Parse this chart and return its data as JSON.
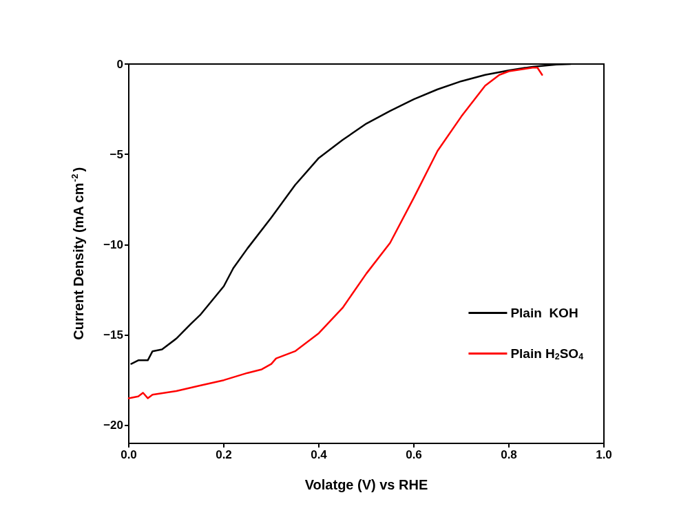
{
  "chart_data": {
    "type": "line",
    "xlabel": "Volatge (V) vs RHE",
    "ylabel": "Current Density (mA cm$^{-2}$)",
    "xlim": [
      0,
      1
    ],
    "xticks": [
      {
        "value": 0,
        "label": "0.0"
      },
      {
        "value": 0.2,
        "label": "0.2"
      },
      {
        "value": 0.4,
        "label": "0.4"
      },
      {
        "value": 0.6,
        "label": "0.6"
      },
      {
        "value": 0.8,
        "label": "0.8"
      },
      {
        "value": 1,
        "label": "1.0"
      }
    ],
    "ylim": [
      -21,
      0
    ],
    "yticks": [
      {
        "value": -20,
        "label": "−20"
      },
      {
        "value": -15,
        "label": "−15"
      },
      {
        "value": -10,
        "label": "−10"
      },
      {
        "value": -5,
        "label": "−5"
      },
      0
    ],
    "grid": false,
    "legend": "right",
    "marker": "none",
    "line_style": "solid",
    "series": [
      {
        "name": "Plain  KOH",
        "color": "#000000",
        "x": [
          0.005,
          0.02,
          0.04,
          0.05,
          0.07,
          0.1,
          0.13,
          0.15,
          0.2,
          0.22,
          0.25,
          0.3,
          0.35,
          0.4,
          0.45,
          0.5,
          0.55,
          0.6,
          0.65,
          0.7,
          0.75,
          0.8,
          0.85,
          0.9,
          0.93
        ],
        "values": [
          -16.6,
          -16.4,
          -16.4,
          -15.9,
          -15.8,
          -15.2,
          -14.4,
          -13.9,
          -12.3,
          -11.3,
          -10.2,
          -8.5,
          -6.7,
          -5.2,
          -4.2,
          -3.3,
          -2.6,
          -1.95,
          -1.4,
          -0.95,
          -0.6,
          -0.35,
          -0.15,
          -0.03,
          0
        ]
      },
      {
        "name": "Plain H$_{2}$SO$_{4}$",
        "color": "#ff0000",
        "x": [
          0,
          0.02,
          0.03,
          0.04,
          0.05,
          0.1,
          0.15,
          0.2,
          0.25,
          0.28,
          0.3,
          0.31,
          0.35,
          0.4,
          0.45,
          0.5,
          0.55,
          0.6,
          0.65,
          0.7,
          0.75,
          0.78,
          0.8,
          0.85,
          0.86,
          0.87
        ],
        "values": [
          -18.5,
          -18.4,
          -18.2,
          -18.5,
          -18.3,
          -18.1,
          -17.8,
          -17.5,
          -17.1,
          -16.9,
          -16.6,
          -16.3,
          -15.9,
          -14.9,
          -13.5,
          -11.6,
          -9.9,
          -7.4,
          -4.8,
          -2.9,
          -1.2,
          -0.6,
          -0.4,
          -0.2,
          -0.2,
          -0.6
        ]
      }
    ]
  }
}
